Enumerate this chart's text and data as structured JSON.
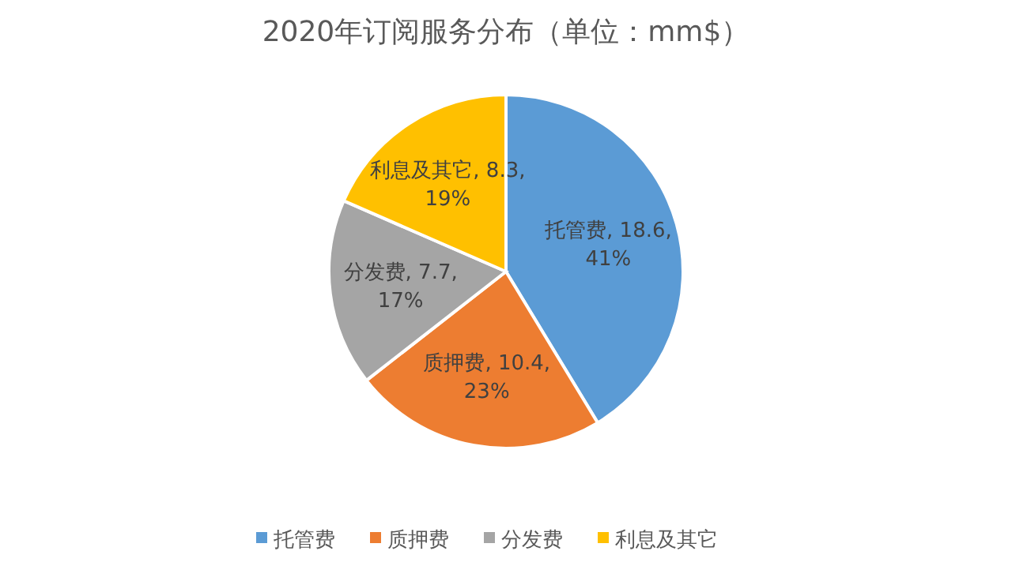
{
  "chart_data": {
    "type": "pie",
    "title": "2020年订阅服务分布（单位：mm$）",
    "categories": [
      "托管费",
      "质押费",
      "分发费",
      "利息及其它"
    ],
    "values": [
      18.6,
      10.4,
      7.7,
      8.3
    ],
    "colors": [
      "#5b9bd5",
      "#ed7d31",
      "#a5a5a5",
      "#ffc000"
    ],
    "value_labels": [
      "托管费, 18.6, 41%",
      "质押费, 10.4, 23%",
      "分发费, 7.7, 17%",
      "利息及其它, 8.3, 19%"
    ],
    "legend": "bottom"
  }
}
